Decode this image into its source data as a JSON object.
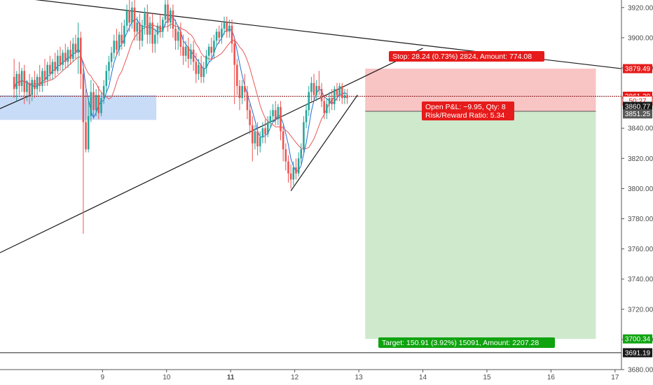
{
  "chart_data": {
    "type": "candlestick",
    "y_axis": {
      "min": 3680,
      "max": 3925,
      "ticks": [
        "3920.00",
        "3900.00",
        "3880.00",
        "3860.00",
        "3840.00",
        "3820.00",
        "3800.00",
        "3780.00",
        "3760.00",
        "3740.00",
        "3720.00",
        "3700.00",
        "3680.00"
      ]
    },
    "x_axis": {
      "ticks": [
        "9",
        "10",
        "11",
        "12",
        "13",
        "14",
        "15",
        "16",
        "17"
      ],
      "bold_tick": "11",
      "range_days": [
        7.4,
        17.1
      ]
    },
    "candles": [
      {
        "t": 7.62,
        "o": 3874,
        "h": 3886,
        "c": 3866,
        "l": 3860
      },
      {
        "t": 7.66,
        "o": 3866,
        "h": 3878,
        "c": 3876,
        "l": 3858
      },
      {
        "t": 7.7,
        "o": 3876,
        "h": 3884,
        "c": 3868,
        "l": 3862
      },
      {
        "t": 7.74,
        "o": 3868,
        "h": 3880,
        "c": 3878,
        "l": 3864
      },
      {
        "t": 7.78,
        "o": 3878,
        "h": 3882,
        "c": 3864,
        "l": 3856
      },
      {
        "t": 7.82,
        "o": 3864,
        "h": 3872,
        "c": 3870,
        "l": 3858
      },
      {
        "t": 7.86,
        "o": 3870,
        "h": 3876,
        "c": 3862,
        "l": 3856
      },
      {
        "t": 7.9,
        "o": 3862,
        "h": 3874,
        "c": 3872,
        "l": 3858
      },
      {
        "t": 7.94,
        "o": 3872,
        "h": 3878,
        "c": 3866,
        "l": 3860
      },
      {
        "t": 7.98,
        "o": 3866,
        "h": 3876,
        "c": 3874,
        "l": 3862
      },
      {
        "t": 8.02,
        "o": 3874,
        "h": 3882,
        "c": 3868,
        "l": 3864
      },
      {
        "t": 8.06,
        "o": 3868,
        "h": 3880,
        "c": 3878,
        "l": 3864
      },
      {
        "t": 8.1,
        "o": 3878,
        "h": 3886,
        "c": 3872,
        "l": 3868
      },
      {
        "t": 8.14,
        "o": 3872,
        "h": 3884,
        "c": 3882,
        "l": 3868
      },
      {
        "t": 8.18,
        "o": 3882,
        "h": 3888,
        "c": 3876,
        "l": 3872
      },
      {
        "t": 8.22,
        "o": 3876,
        "h": 3886,
        "c": 3884,
        "l": 3872
      },
      {
        "t": 8.26,
        "o": 3884,
        "h": 3890,
        "c": 3878,
        "l": 3874
      },
      {
        "t": 8.3,
        "o": 3878,
        "h": 3892,
        "c": 3888,
        "l": 3876
      },
      {
        "t": 8.34,
        "o": 3888,
        "h": 3894,
        "c": 3882,
        "l": 3878
      },
      {
        "t": 8.38,
        "o": 3882,
        "h": 3892,
        "c": 3890,
        "l": 3878
      },
      {
        "t": 8.42,
        "o": 3890,
        "h": 3896,
        "c": 3884,
        "l": 3880
      },
      {
        "t": 8.46,
        "o": 3884,
        "h": 3894,
        "c": 3892,
        "l": 3880
      },
      {
        "t": 8.5,
        "o": 3892,
        "h": 3898,
        "c": 3886,
        "l": 3882
      },
      {
        "t": 8.54,
        "o": 3886,
        "h": 3900,
        "c": 3896,
        "l": 3884
      },
      {
        "t": 8.58,
        "o": 3896,
        "h": 3902,
        "c": 3890,
        "l": 3886
      },
      {
        "t": 8.62,
        "o": 3890,
        "h": 3910,
        "c": 3900,
        "l": 3876
      },
      {
        "t": 8.66,
        "o": 3900,
        "h": 3904,
        "c": 3876,
        "l": 3866
      },
      {
        "t": 8.7,
        "o": 3876,
        "h": 3880,
        "c": 3844,
        "l": 3770
      },
      {
        "t": 8.74,
        "o": 3844,
        "h": 3866,
        "c": 3826,
        "l": 3824
      },
      {
        "t": 8.78,
        "o": 3826,
        "h": 3860,
        "c": 3848,
        "l": 3824
      },
      {
        "t": 8.82,
        "o": 3848,
        "h": 3872,
        "c": 3864,
        "l": 3844
      },
      {
        "t": 8.86,
        "o": 3864,
        "h": 3870,
        "c": 3852,
        "l": 3846
      },
      {
        "t": 8.9,
        "o": 3852,
        "h": 3866,
        "c": 3862,
        "l": 3848
      },
      {
        "t": 8.94,
        "o": 3862,
        "h": 3868,
        "c": 3850,
        "l": 3846
      },
      {
        "t": 8.98,
        "o": 3850,
        "h": 3864,
        "c": 3860,
        "l": 3848
      },
      {
        "t": 9.02,
        "o": 3860,
        "h": 3872,
        "c": 3868,
        "l": 3856
      },
      {
        "t": 9.06,
        "o": 3868,
        "h": 3882,
        "c": 3878,
        "l": 3864
      },
      {
        "t": 9.1,
        "o": 3878,
        "h": 3888,
        "c": 3884,
        "l": 3872
      },
      {
        "t": 9.14,
        "o": 3884,
        "h": 3894,
        "c": 3890,
        "l": 3880
      },
      {
        "t": 9.18,
        "o": 3890,
        "h": 3902,
        "c": 3898,
        "l": 3886
      },
      {
        "t": 9.22,
        "o": 3898,
        "h": 3906,
        "c": 3892,
        "l": 3888
      },
      {
        "t": 9.26,
        "o": 3892,
        "h": 3904,
        "c": 3902,
        "l": 3888
      },
      {
        "t": 9.3,
        "o": 3902,
        "h": 3910,
        "c": 3896,
        "l": 3892
      },
      {
        "t": 9.34,
        "o": 3896,
        "h": 3912,
        "c": 3908,
        "l": 3894
      },
      {
        "t": 9.38,
        "o": 3908,
        "h": 3922,
        "c": 3918,
        "l": 3904
      },
      {
        "t": 9.42,
        "o": 3918,
        "h": 3926,
        "c": 3910,
        "l": 3904
      },
      {
        "t": 9.46,
        "o": 3910,
        "h": 3924,
        "c": 3920,
        "l": 3906
      },
      {
        "t": 9.5,
        "o": 3920,
        "h": 3926,
        "c": 3904,
        "l": 3898
      },
      {
        "t": 9.54,
        "o": 3904,
        "h": 3914,
        "c": 3910,
        "l": 3898
      },
      {
        "t": 9.58,
        "o": 3910,
        "h": 3916,
        "c": 3898,
        "l": 3892
      },
      {
        "t": 9.62,
        "o": 3898,
        "h": 3912,
        "c": 3908,
        "l": 3894
      },
      {
        "t": 9.66,
        "o": 3908,
        "h": 3920,
        "c": 3916,
        "l": 3902
      },
      {
        "t": 9.7,
        "o": 3916,
        "h": 3922,
        "c": 3902,
        "l": 3896
      },
      {
        "t": 9.74,
        "o": 3902,
        "h": 3914,
        "c": 3910,
        "l": 3896
      },
      {
        "t": 9.78,
        "o": 3910,
        "h": 3916,
        "c": 3896,
        "l": 3890
      },
      {
        "t": 9.82,
        "o": 3896,
        "h": 3906,
        "c": 3902,
        "l": 3890
      },
      {
        "t": 9.86,
        "o": 3902,
        "h": 3910,
        "c": 3908,
        "l": 3896
      },
      {
        "t": 9.9,
        "o": 3908,
        "h": 3916,
        "c": 3904,
        "l": 3900
      },
      {
        "t": 9.94,
        "o": 3904,
        "h": 3914,
        "c": 3912,
        "l": 3900
      },
      {
        "t": 9.98,
        "o": 3912,
        "h": 3926,
        "c": 3922,
        "l": 3908
      },
      {
        "t": 10.02,
        "o": 3922,
        "h": 3926,
        "c": 3910,
        "l": 3904
      },
      {
        "t": 10.06,
        "o": 3910,
        "h": 3920,
        "c": 3918,
        "l": 3906
      },
      {
        "t": 10.1,
        "o": 3918,
        "h": 3922,
        "c": 3906,
        "l": 3900
      },
      {
        "t": 10.14,
        "o": 3906,
        "h": 3912,
        "c": 3898,
        "l": 3892
      },
      {
        "t": 10.18,
        "o": 3898,
        "h": 3908,
        "c": 3904,
        "l": 3892
      },
      {
        "t": 10.22,
        "o": 3904,
        "h": 3910,
        "c": 3894,
        "l": 3888
      },
      {
        "t": 10.26,
        "o": 3894,
        "h": 3902,
        "c": 3888,
        "l": 3882
      },
      {
        "t": 10.3,
        "o": 3888,
        "h": 3898,
        "c": 3894,
        "l": 3884
      },
      {
        "t": 10.34,
        "o": 3894,
        "h": 3900,
        "c": 3886,
        "l": 3880
      },
      {
        "t": 10.38,
        "o": 3886,
        "h": 3896,
        "c": 3892,
        "l": 3882
      },
      {
        "t": 10.42,
        "o": 3892,
        "h": 3898,
        "c": 3884,
        "l": 3878
      },
      {
        "t": 10.46,
        "o": 3884,
        "h": 3890,
        "c": 3876,
        "l": 3870
      },
      {
        "t": 10.5,
        "o": 3876,
        "h": 3886,
        "c": 3882,
        "l": 3872
      },
      {
        "t": 10.54,
        "o": 3882,
        "h": 3888,
        "c": 3874,
        "l": 3870
      },
      {
        "t": 10.58,
        "o": 3874,
        "h": 3884,
        "c": 3880,
        "l": 3870
      },
      {
        "t": 10.62,
        "o": 3880,
        "h": 3892,
        "c": 3888,
        "l": 3876
      },
      {
        "t": 10.66,
        "o": 3888,
        "h": 3896,
        "c": 3894,
        "l": 3884
      },
      {
        "t": 10.7,
        "o": 3894,
        "h": 3900,
        "c": 3890,
        "l": 3886
      },
      {
        "t": 10.74,
        "o": 3890,
        "h": 3902,
        "c": 3898,
        "l": 3886
      },
      {
        "t": 10.78,
        "o": 3898,
        "h": 3906,
        "c": 3904,
        "l": 3894
      },
      {
        "t": 10.82,
        "o": 3904,
        "h": 3908,
        "c": 3900,
        "l": 3896
      },
      {
        "t": 10.86,
        "o": 3900,
        "h": 3910,
        "c": 3906,
        "l": 3896
      },
      {
        "t": 10.9,
        "o": 3906,
        "h": 3914,
        "c": 3910,
        "l": 3902
      },
      {
        "t": 10.94,
        "o": 3910,
        "h": 3914,
        "c": 3904,
        "l": 3900
      },
      {
        "t": 10.98,
        "o": 3904,
        "h": 3912,
        "c": 3908,
        "l": 3900
      },
      {
        "t": 11.02,
        "o": 3908,
        "h": 3912,
        "c": 3896,
        "l": 3890
      },
      {
        "t": 11.06,
        "o": 3896,
        "h": 3900,
        "c": 3882,
        "l": 3856
      },
      {
        "t": 11.1,
        "o": 3882,
        "h": 3886,
        "c": 3868,
        "l": 3862
      },
      {
        "t": 11.14,
        "o": 3868,
        "h": 3872,
        "c": 3860,
        "l": 3852
      },
      {
        "t": 11.18,
        "o": 3860,
        "h": 3872,
        "c": 3868,
        "l": 3856
      },
      {
        "t": 11.22,
        "o": 3868,
        "h": 3876,
        "c": 3864,
        "l": 3858
      },
      {
        "t": 11.26,
        "o": 3864,
        "h": 3868,
        "c": 3852,
        "l": 3846
      },
      {
        "t": 11.3,
        "o": 3852,
        "h": 3856,
        "c": 3842,
        "l": 3836
      },
      {
        "t": 11.34,
        "o": 3842,
        "h": 3848,
        "c": 3830,
        "l": 3818
      },
      {
        "t": 11.38,
        "o": 3830,
        "h": 3842,
        "c": 3838,
        "l": 3826
      },
      {
        "t": 11.42,
        "o": 3838,
        "h": 3844,
        "c": 3828,
        "l": 3822
      },
      {
        "t": 11.46,
        "o": 3828,
        "h": 3838,
        "c": 3834,
        "l": 3824
      },
      {
        "t": 11.5,
        "o": 3834,
        "h": 3844,
        "c": 3840,
        "l": 3830
      },
      {
        "t": 11.54,
        "o": 3840,
        "h": 3846,
        "c": 3836,
        "l": 3830
      },
      {
        "t": 11.58,
        "o": 3836,
        "h": 3848,
        "c": 3844,
        "l": 3834
      },
      {
        "t": 11.62,
        "o": 3844,
        "h": 3852,
        "c": 3848,
        "l": 3840
      },
      {
        "t": 11.66,
        "o": 3848,
        "h": 3856,
        "c": 3852,
        "l": 3844
      },
      {
        "t": 11.7,
        "o": 3852,
        "h": 3858,
        "c": 3846,
        "l": 3842
      },
      {
        "t": 11.74,
        "o": 3846,
        "h": 3856,
        "c": 3854,
        "l": 3842
      },
      {
        "t": 11.78,
        "o": 3854,
        "h": 3858,
        "c": 3838,
        "l": 3832
      },
      {
        "t": 11.82,
        "o": 3838,
        "h": 3842,
        "c": 3826,
        "l": 3818
      },
      {
        "t": 11.86,
        "o": 3826,
        "h": 3830,
        "c": 3818,
        "l": 3812
      },
      {
        "t": 11.9,
        "o": 3818,
        "h": 3822,
        "c": 3810,
        "l": 3804
      },
      {
        "t": 11.94,
        "o": 3810,
        "h": 3816,
        "c": 3806,
        "l": 3800
      },
      {
        "t": 11.98,
        "o": 3806,
        "h": 3818,
        "c": 3814,
        "l": 3802
      },
      {
        "t": 12.02,
        "o": 3814,
        "h": 3820,
        "c": 3810,
        "l": 3806
      },
      {
        "t": 12.06,
        "o": 3810,
        "h": 3824,
        "c": 3820,
        "l": 3808
      },
      {
        "t": 12.1,
        "o": 3820,
        "h": 3830,
        "c": 3826,
        "l": 3816
      },
      {
        "t": 12.14,
        "o": 3826,
        "h": 3848,
        "c": 3844,
        "l": 3822
      },
      {
        "t": 12.18,
        "o": 3844,
        "h": 3856,
        "c": 3852,
        "l": 3840
      },
      {
        "t": 12.22,
        "o": 3852,
        "h": 3868,
        "c": 3864,
        "l": 3848
      },
      {
        "t": 12.26,
        "o": 3864,
        "h": 3874,
        "c": 3870,
        "l": 3858
      },
      {
        "t": 12.3,
        "o": 3870,
        "h": 3876,
        "c": 3862,
        "l": 3858
      },
      {
        "t": 12.34,
        "o": 3862,
        "h": 3872,
        "c": 3868,
        "l": 3858
      },
      {
        "t": 12.38,
        "o": 3868,
        "h": 3878,
        "c": 3866,
        "l": 3862
      },
      {
        "t": 12.42,
        "o": 3866,
        "h": 3870,
        "c": 3858,
        "l": 3854
      },
      {
        "t": 12.46,
        "o": 3858,
        "h": 3862,
        "c": 3850,
        "l": 3846
      },
      {
        "t": 12.5,
        "o": 3850,
        "h": 3860,
        "c": 3856,
        "l": 3846
      },
      {
        "t": 12.54,
        "o": 3856,
        "h": 3864,
        "c": 3860,
        "l": 3850
      },
      {
        "t": 12.58,
        "o": 3860,
        "h": 3866,
        "c": 3856,
        "l": 3852
      },
      {
        "t": 12.62,
        "o": 3856,
        "h": 3868,
        "c": 3866,
        "l": 3852
      },
      {
        "t": 12.66,
        "o": 3866,
        "h": 3870,
        "c": 3862,
        "l": 3858
      },
      {
        "t": 12.7,
        "o": 3862,
        "h": 3870,
        "c": 3868,
        "l": 3858
      },
      {
        "t": 12.74,
        "o": 3868,
        "h": 3870,
        "c": 3860,
        "l": 3856
      },
      {
        "t": 12.78,
        "o": 3860,
        "h": 3866,
        "c": 3862,
        "l": 3856
      },
      {
        "t": 12.82,
        "o": 3862,
        "h": 3866,
        "c": 3860,
        "l": 3856
      }
    ],
    "annotations": {
      "stop_label": "Stop: 28.24 (0.73%) 2824, Amount: 774.08",
      "pnl_label": "Open P&L: −9.95, Qty: 8",
      "rr_label": "Risk/Reward Ratio: 5.34",
      "target_label": "Target: 150.91 (3.92%) 15091, Amount: 2207.28"
    },
    "price_tags": [
      {
        "text": "3879.49",
        "price": 3879.49,
        "style": "red"
      },
      {
        "text": "3861.20",
        "price": 3861.2,
        "style": "red"
      },
      {
        "text": "50:27",
        "price": 3858.2,
        "style": "red-outline"
      },
      {
        "text": "3860.77",
        "price": 3854.5,
        "style": "dark"
      },
      {
        "text": "3851.25",
        "price": 3849.5,
        "style": "gray"
      },
      {
        "text": "3700.34",
        "price": 3700.34,
        "style": "green"
      },
      {
        "text": "3691.19",
        "price": 3691.19,
        "style": "dark"
      }
    ],
    "position": {
      "entry": 3851.25,
      "stop": 3879.49,
      "target": 3700.34,
      "start_day": 13.1,
      "end_day": 16.7
    },
    "support_zone": {
      "from_day": 7.4,
      "to_day": 9.84,
      "low": 3845.5,
      "high": 3862
    },
    "horizontal_lines": [
      3861.2,
      3691.19
    ],
    "trendlines": [
      {
        "name": "downtrend-line",
        "from": [
          7.4,
          3928
        ],
        "to": [
          17.1,
          3879.5
        ]
      },
      {
        "name": "uptrend-line",
        "from": [
          7.4,
          3757.5
        ],
        "to": [
          14.0,
          3893
        ]
      },
      {
        "name": "rising-wedge-lower",
        "from": [
          11.94,
          3798.5
        ],
        "to": [
          12.98,
          3862
        ]
      },
      {
        "name": "left-small-trendline",
        "from": [
          7.4,
          3853
        ],
        "to": [
          7.88,
          3862
        ]
      }
    ],
    "ma_fast_color": "#1e6fd8",
    "ma_slow_color": "#e8585a",
    "colors": {
      "up": "#26a69a",
      "down": "#ef5350",
      "stop_zone": "#f8c4c4",
      "target_zone": "#cfe9cd",
      "label_red": "#e61b1b",
      "label_green": "#10a310",
      "support_zone": "#c8dbf7"
    }
  }
}
